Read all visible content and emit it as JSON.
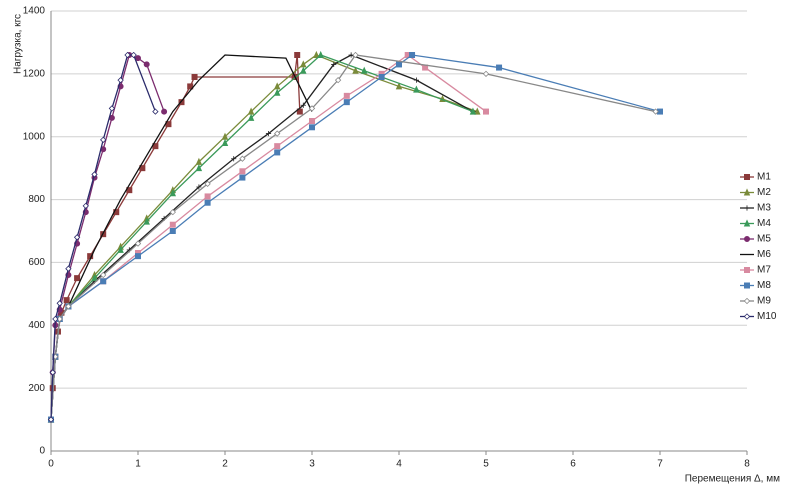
{
  "chart_data": {
    "type": "line",
    "y_label": "Нагрузка, кгс",
    "x_label": "Перемещения Δ, мм",
    "xlim": [
      0,
      8
    ],
    "xticks": [
      0,
      1,
      2,
      3,
      4,
      5,
      6,
      7,
      8
    ],
    "ylim": [
      0,
      1400
    ],
    "yticks": [
      0,
      200,
      400,
      600,
      800,
      1000,
      1200,
      1400
    ],
    "grid": true,
    "legend": "right",
    "series": [
      {
        "name": "M1",
        "color": "#8b3a3a",
        "marker": "square",
        "x": [
          0,
          0.02,
          0.05,
          0.08,
          0.12,
          0.18,
          0.3,
          0.45,
          0.6,
          0.75,
          0.9,
          1.05,
          1.2,
          1.35,
          1.5,
          1.6,
          1.65,
          2.8,
          2.83,
          2.86
        ],
        "values": [
          100,
          200,
          300,
          380,
          440,
          480,
          550,
          620,
          690,
          760,
          830,
          900,
          970,
          1040,
          1110,
          1160,
          1190,
          1190,
          1260,
          1080
        ]
      },
      {
        "name": "M2",
        "color": "#7a8b3a",
        "marker": "triangle",
        "x": [
          0,
          0.05,
          0.1,
          0.2,
          0.5,
          0.8,
          1.1,
          1.4,
          1.7,
          2.0,
          2.3,
          2.6,
          2.9,
          3.05,
          3.5,
          4.0,
          4.5,
          4.9
        ],
        "values": [
          100,
          300,
          420,
          460,
          560,
          650,
          740,
          830,
          920,
          1000,
          1080,
          1160,
          1230,
          1260,
          1210,
          1160,
          1120,
          1080
        ]
      },
      {
        "name": "M3",
        "color": "#222222",
        "marker": "cross",
        "x": [
          0,
          0.05,
          0.1,
          0.2,
          0.5,
          0.9,
          1.3,
          1.7,
          2.1,
          2.5,
          2.9,
          3.25,
          3.45,
          4.2,
          4.85
        ],
        "values": [
          100,
          300,
          420,
          460,
          540,
          640,
          740,
          840,
          930,
          1010,
          1100,
          1230,
          1260,
          1180,
          1080
        ]
      },
      {
        "name": "M4",
        "color": "#3a9a5a",
        "marker": "triangle",
        "x": [
          0,
          0.05,
          0.1,
          0.2,
          0.5,
          0.8,
          1.1,
          1.4,
          1.7,
          2.0,
          2.3,
          2.6,
          2.9,
          3.1,
          3.6,
          4.2,
          4.85
        ],
        "values": [
          100,
          300,
          420,
          460,
          550,
          640,
          730,
          820,
          900,
          980,
          1060,
          1140,
          1210,
          1260,
          1210,
          1150,
          1080
        ]
      },
      {
        "name": "M5",
        "color": "#7b2c6e",
        "marker": "circle",
        "x": [
          0,
          0.02,
          0.05,
          0.1,
          0.2,
          0.3,
          0.4,
          0.5,
          0.6,
          0.7,
          0.8,
          0.9,
          1.0,
          1.1,
          1.3
        ],
        "values": [
          100,
          250,
          400,
          450,
          560,
          660,
          760,
          870,
          960,
          1060,
          1160,
          1260,
          1250,
          1230,
          1080
        ]
      },
      {
        "name": "M6",
        "color": "#111111",
        "marker": "none",
        "x": [
          0,
          0.05,
          0.1,
          0.2,
          0.5,
          0.8,
          1.1,
          1.4,
          1.7,
          2.0,
          2.7,
          3.0
        ],
        "values": [
          100,
          300,
          420,
          460,
          640,
          800,
          940,
          1080,
          1180,
          1260,
          1250,
          1080
        ]
      },
      {
        "name": "M7",
        "color": "#d88aa0",
        "marker": "square",
        "x": [
          0,
          0.05,
          0.1,
          0.2,
          0.6,
          1.0,
          1.4,
          1.8,
          2.2,
          2.6,
          3.0,
          3.4,
          3.8,
          4.1,
          4.3,
          5.0
        ],
        "values": [
          100,
          300,
          420,
          460,
          540,
          630,
          720,
          810,
          890,
          970,
          1050,
          1130,
          1200,
          1260,
          1220,
          1080
        ]
      },
      {
        "name": "M8",
        "color": "#4a7db5",
        "marker": "square",
        "x": [
          0,
          0.05,
          0.1,
          0.2,
          0.6,
          1.0,
          1.4,
          1.8,
          2.2,
          2.6,
          3.0,
          3.4,
          3.8,
          4.0,
          4.15,
          5.15,
          7.0
        ],
        "values": [
          100,
          300,
          420,
          460,
          540,
          620,
          700,
          790,
          870,
          950,
          1030,
          1110,
          1190,
          1230,
          1260,
          1220,
          1080
        ]
      },
      {
        "name": "M9",
        "color": "#888888",
        "marker": "diamond",
        "x": [
          0,
          0.05,
          0.1,
          0.2,
          0.6,
          1.0,
          1.4,
          1.8,
          2.2,
          2.6,
          3.0,
          3.3,
          3.5,
          5.0,
          6.95
        ],
        "values": [
          100,
          300,
          420,
          460,
          560,
          660,
          760,
          850,
          930,
          1010,
          1090,
          1180,
          1260,
          1200,
          1080
        ]
      },
      {
        "name": "M10",
        "color": "#2b2b6b",
        "marker": "diamond",
        "x": [
          0,
          0.02,
          0.05,
          0.1,
          0.2,
          0.3,
          0.4,
          0.5,
          0.6,
          0.7,
          0.8,
          0.88,
          0.95,
          1.2
        ],
        "values": [
          100,
          250,
          420,
          470,
          580,
          680,
          780,
          880,
          990,
          1090,
          1180,
          1260,
          1260,
          1080
        ]
      }
    ]
  }
}
